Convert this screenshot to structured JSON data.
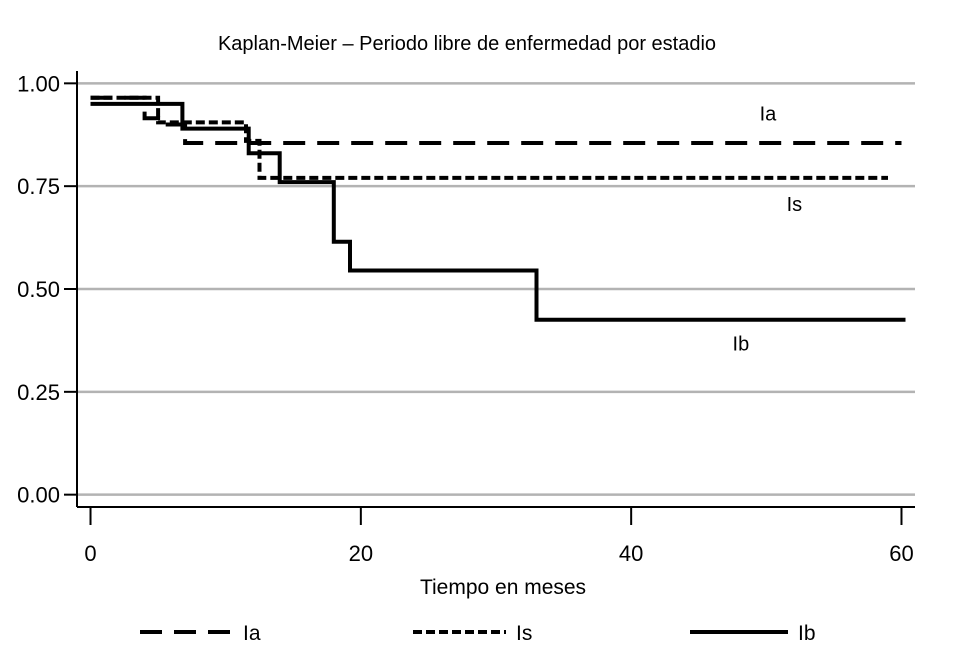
{
  "chart_data": {
    "type": "line",
    "subtype": "kaplan-meier-step",
    "title": "Kaplan-Meier – Periodo libre de enfermedad por estadio",
    "xlabel": "Tiempo en meses",
    "ylabel": "",
    "xlim": [
      -1,
      61
    ],
    "ylim": [
      -0.03,
      1.03
    ],
    "xticks": [
      0,
      20,
      40,
      60
    ],
    "xtick_labels": [
      "0",
      "20",
      "40",
      "60"
    ],
    "yticks": [
      0,
      0.25,
      0.5,
      0.75,
      1.0
    ],
    "ytick_labels": [
      "0.00",
      "0.25",
      "0.50",
      "0.75",
      "1.00"
    ],
    "grid": "horizontal",
    "grid_color": "#b3b3b3",
    "legend_position": "bottom",
    "series": [
      {
        "name": "Ia",
        "label": "Ia",
        "style": "dashed",
        "color": "#000000",
        "label_at": [
          49.5,
          0.91
        ],
        "steps": [
          [
            0,
            0.965
          ],
          [
            4,
            0.965
          ],
          [
            4,
            0.915
          ],
          [
            5,
            0.915
          ],
          [
            5,
            0.9
          ],
          [
            7,
            0.9
          ],
          [
            7,
            0.855
          ],
          [
            60,
            0.855
          ]
        ]
      },
      {
        "name": "Is",
        "label": "Is",
        "style": "dotted",
        "color": "#000000",
        "label_at": [
          51.5,
          0.69
        ],
        "steps": [
          [
            0,
            0.965
          ],
          [
            5,
            0.965
          ],
          [
            5,
            0.905
          ],
          [
            11.5,
            0.905
          ],
          [
            11.5,
            0.86
          ],
          [
            12.5,
            0.86
          ],
          [
            12.5,
            0.77
          ],
          [
            59,
            0.77
          ]
        ]
      },
      {
        "name": "Ib",
        "label": "Ib",
        "style": "solid",
        "color": "#000000",
        "label_at": [
          47.5,
          0.35
        ],
        "steps": [
          [
            0,
            0.95
          ],
          [
            6.8,
            0.95
          ],
          [
            6.8,
            0.89
          ],
          [
            11.7,
            0.89
          ],
          [
            11.7,
            0.83
          ],
          [
            14,
            0.83
          ],
          [
            14,
            0.76
          ],
          [
            18,
            0.76
          ],
          [
            18,
            0.615
          ],
          [
            19.2,
            0.615
          ],
          [
            19.2,
            0.545
          ],
          [
            33,
            0.545
          ],
          [
            33,
            0.425
          ],
          [
            60.3,
            0.425
          ]
        ]
      }
    ]
  }
}
